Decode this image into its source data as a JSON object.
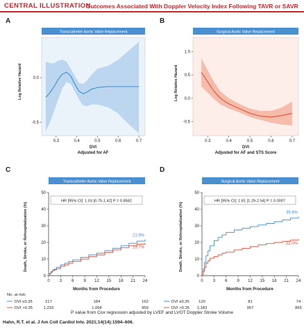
{
  "header": {
    "label": "CENTRAL ILLUSTRATION",
    "title": "Outcomes Associated With Doppler Velocity Index Following TAVR or SAVR"
  },
  "panels": {
    "A": {
      "letter": "A",
      "banner": "Transcatheter Aortic Valve Replacement",
      "ylabel": "Log Relative Hazard",
      "xlabel_line1": "DVI",
      "xlabel_line2": "Adjusted for AF"
    },
    "B": {
      "letter": "B",
      "banner": "Surgical Aortic Valve Replacement",
      "ylabel": "Log Relative Hazard",
      "xlabel_line1": "DVI",
      "xlabel_line2": "Adjusted for AF and STS Score"
    },
    "C": {
      "letter": "C",
      "banner": "Transcatheter Aortic Valve Replacement",
      "ylabel": "Death, Stroke, or Rehospitalization (%)",
      "xlabel": "Months from Procedure",
      "hr": "HR [95% CI]: 1.03 [0.75-1.42] P = 0.8582"
    },
    "D": {
      "letter": "D",
      "banner": "Surgical Aortic Valve Replacement",
      "ylabel": "Death, Stroke, or Rehospitalization (%)",
      "xlabel": "Months from Procedure",
      "hr": "HR [95% CI]: 1.81 [1.29-2.54] P = 0.0007"
    }
  },
  "risk": {
    "title": "No. at risk:",
    "C": {
      "rows": [
        {
          "label": "DVI ≤0.35",
          "values": [
            "217",
            "184",
            "162"
          ]
        },
        {
          "label": "DVI >0.35",
          "values": [
            "1,233",
            "1,068",
            "959"
          ]
        }
      ]
    },
    "D": {
      "rows": [
        {
          "label": "DVI ≤0.35",
          "values": [
            "120",
            "81",
            "74"
          ]
        },
        {
          "label": "DVI >0.35",
          "values": [
            "1,183",
            "957",
            "865"
          ]
        }
      ]
    }
  },
  "footer": {
    "note": "P value from Cox regression adjusted by LVEF and LVOT Doppler Stroke Volume",
    "citation": "Hahn, R.T. et al. J Am Coll Cardiol Intv. 2021;14(14):1594–606."
  },
  "colors": {
    "brand": "#c9252c",
    "blue": "#3a8fd0",
    "blue_band": "#b7d3ee",
    "red": "#e2513a",
    "red_band": "#f5b6a4",
    "banner_blue": "#4a90d0"
  },
  "chart_data": [
    {
      "id": "A",
      "type": "line",
      "title": "Transcatheter Aortic Valve Replacement",
      "xlabel": "DVI",
      "ylabel": "Log Relative Hazard",
      "xlim": [
        0.23,
        0.73
      ],
      "ylim": [
        -0.65,
        0.45
      ],
      "xticks": [
        "0.3",
        "0.4",
        "0.5",
        "0.6",
        "0.7"
      ],
      "yticks": [
        "0.0",
        "-0.5"
      ],
      "series": [
        {
          "x": [
            0.25,
            0.27,
            0.29,
            0.31,
            0.33,
            0.35,
            0.37,
            0.39,
            0.41,
            0.43,
            0.45,
            0.47,
            0.5,
            0.55,
            0.6,
            0.65,
            0.7
          ],
          "y": [
            -0.22,
            -0.17,
            -0.1,
            -0.02,
            0.04,
            0.06,
            0.02,
            -0.07,
            -0.15,
            -0.18,
            -0.16,
            -0.13,
            -0.11,
            -0.1,
            -0.1,
            -0.1,
            -0.1
          ],
          "lower": [
            -0.6,
            -0.5,
            -0.38,
            -0.24,
            -0.12,
            -0.05,
            -0.07,
            -0.15,
            -0.24,
            -0.31,
            -0.32,
            -0.3,
            -0.3,
            -0.33,
            -0.4,
            -0.52,
            -0.62
          ],
          "upper": [
            0.18,
            0.16,
            0.16,
            0.19,
            0.2,
            0.18,
            0.1,
            0.02,
            -0.06,
            -0.07,
            -0.03,
            0.03,
            0.1,
            0.13,
            0.2,
            0.3,
            0.4
          ]
        }
      ]
    },
    {
      "id": "B",
      "type": "line",
      "title": "Surgical Aortic Valve Replacement",
      "xlabel": "DVI",
      "ylabel": "Log Relative Hazard",
      "xlim": [
        0.23,
        0.73
      ],
      "ylim": [
        -0.8,
        1.3
      ],
      "xticks": [
        "0.3",
        "0.4",
        "0.5",
        "0.6",
        "0.7"
      ],
      "yticks": [
        "1.0",
        "0.5",
        "0.0",
        "-0.5"
      ],
      "series": [
        {
          "x": [
            0.27,
            0.3,
            0.33,
            0.36,
            0.4,
            0.45,
            0.5,
            0.55,
            0.6,
            0.65,
            0.7
          ],
          "y": [
            0.55,
            0.35,
            0.15,
            0.0,
            -0.12,
            -0.22,
            -0.32,
            -0.38,
            -0.4,
            -0.37,
            -0.32
          ],
          "lower": [
            0.25,
            0.12,
            -0.02,
            -0.13,
            -0.22,
            -0.3,
            -0.4,
            -0.46,
            -0.52,
            -0.56,
            -0.58
          ],
          "upper": [
            0.85,
            0.6,
            0.35,
            0.15,
            0.0,
            -0.12,
            -0.22,
            -0.27,
            -0.27,
            -0.2,
            -0.07
          ]
        }
      ]
    },
    {
      "id": "C",
      "type": "line",
      "title": "Transcatheter Aortic Valve Replacement",
      "xlabel": "Months from Procedure",
      "ylabel": "Death, Stroke, or Rehospitalization (%)",
      "xlim": [
        0,
        24
      ],
      "ylim": [
        0,
        50
      ],
      "xticks": [
        "0",
        "3",
        "6",
        "9",
        "12",
        "15",
        "18",
        "21",
        "24"
      ],
      "yticks": [
        "0",
        "10",
        "20",
        "30",
        "40",
        "50"
      ],
      "series": [
        {
          "name": "DVI ≤0.35",
          "end_label": "21.9%",
          "x": [
            0,
            0.3,
            0.6,
            1,
            1.5,
            2,
            3,
            4,
            5,
            6,
            8,
            10,
            12,
            14,
            16,
            18,
            20,
            22,
            24
          ],
          "y": [
            0,
            1.5,
            2.5,
            3.5,
            4,
            5,
            6.5,
            7.5,
            8.5,
            9.5,
            11,
            12.5,
            13.5,
            15,
            16.5,
            18,
            19.5,
            20.8,
            21.9
          ]
        },
        {
          "name": "DVI >0.35",
          "end_label": "19.7%",
          "x": [
            0,
            0.3,
            0.6,
            1,
            1.5,
            2,
            3,
            4,
            5,
            6,
            8,
            10,
            12,
            14,
            16,
            18,
            20,
            22,
            24
          ],
          "y": [
            0,
            1.2,
            2,
            3,
            3.5,
            4.2,
            5.5,
            6.5,
            7.5,
            8.5,
            10,
            11.5,
            12.5,
            14,
            15.5,
            16.8,
            18,
            19,
            19.7
          ]
        }
      ]
    },
    {
      "id": "D",
      "type": "line",
      "title": "Surgical Aortic Valve Replacement",
      "xlabel": "Months from Procedure",
      "ylabel": "Death, Stroke, or Rehospitalization (%)",
      "xlim": [
        0,
        24
      ],
      "ylim": [
        0,
        50
      ],
      "xticks": [
        "0",
        "3",
        "6",
        "9",
        "12",
        "15",
        "18",
        "21",
        "24"
      ],
      "yticks": [
        "0",
        "10",
        "20",
        "30",
        "40",
        "50"
      ],
      "series": [
        {
          "name": "DVI ≤0.35",
          "end_label": "35.6%",
          "x": [
            0,
            0.3,
            0.6,
            1,
            1.5,
            2,
            3,
            4,
            5,
            6,
            8,
            10,
            12,
            14,
            16,
            18,
            20,
            22,
            24
          ],
          "y": [
            0,
            4,
            8,
            12,
            15,
            18,
            21,
            23,
            24.5,
            26,
            27.5,
            28.5,
            29.5,
            30.5,
            31.5,
            32.5,
            33.5,
            34.6,
            35.6
          ]
        },
        {
          "name": "DVI >0.35",
          "end_label": "22.0%",
          "x": [
            0,
            0.3,
            0.6,
            1,
            1.5,
            2,
            3,
            4,
            5,
            6,
            8,
            10,
            12,
            14,
            16,
            18,
            20,
            22,
            24
          ],
          "y": [
            0,
            2.5,
            5,
            7.5,
            9,
            10.5,
            11.5,
            12.5,
            13.5,
            14.2,
            15.5,
            16.5,
            17.5,
            18.5,
            19.3,
            20,
            20.7,
            21.4,
            22.0
          ]
        }
      ]
    }
  ]
}
